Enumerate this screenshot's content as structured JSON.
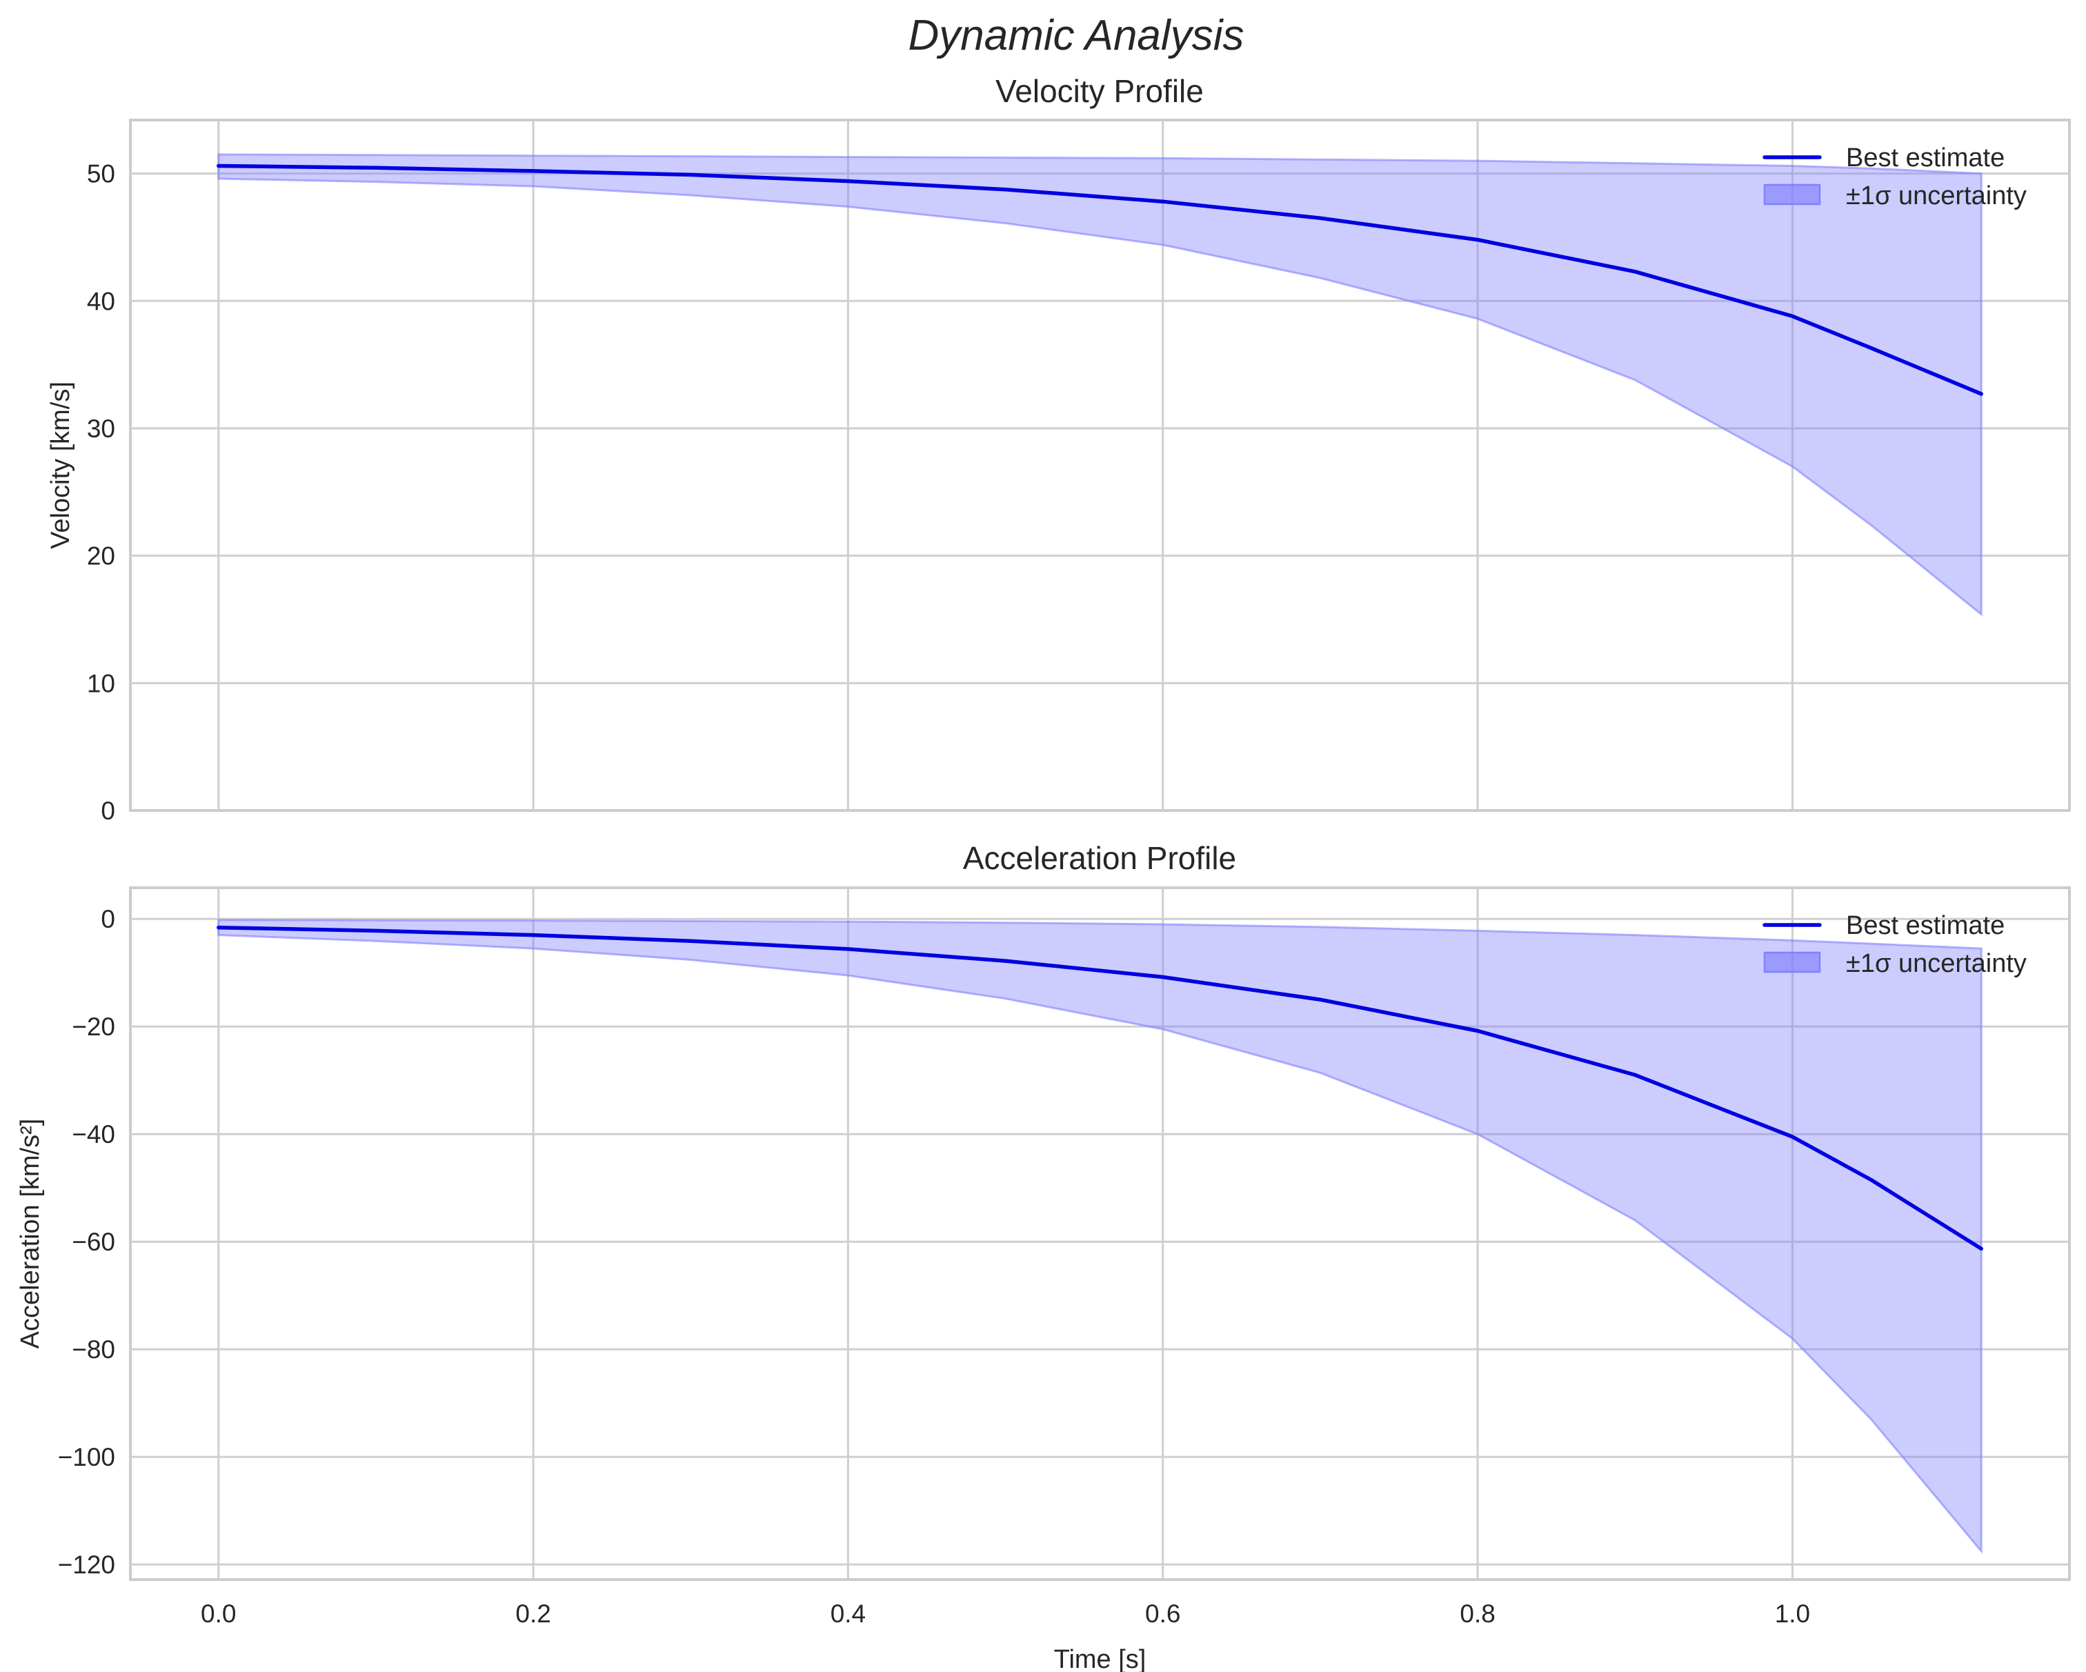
{
  "figure": {
    "suptitle": "Dynamic Analysis"
  },
  "colors": {
    "line": "#0000e0",
    "band_fill": "#8080ff",
    "band_alpha": 0.4,
    "grid": "#cfcfcf",
    "spine": "#cccccc",
    "text": "#262626"
  },
  "chart_data": [
    {
      "type": "line",
      "title": "Velocity Profile",
      "xlabel": "",
      "ylabel": "Velocity [km/s]",
      "xlim": [
        -0.056,
        1.176
      ],
      "ylim": [
        0,
        54.2
      ],
      "xticks": [
        0.0,
        0.2,
        0.4,
        0.6,
        0.8,
        1.0
      ],
      "xtick_labels": [
        "0.0",
        "0.2",
        "0.4",
        "0.6",
        "0.8",
        "1.0"
      ],
      "show_xtick_labels": false,
      "yticks": [
        0,
        10,
        20,
        30,
        40,
        50
      ],
      "ytick_labels": [
        "0",
        "10",
        "20",
        "30",
        "40",
        "50"
      ],
      "grid": true,
      "legend": {
        "position": "upper right",
        "entries": [
          "Best estimate",
          "±1σ uncertainty"
        ]
      },
      "x": [
        0.0,
        0.1,
        0.2,
        0.3,
        0.4,
        0.5,
        0.6,
        0.7,
        0.8,
        0.9,
        1.0,
        1.05,
        1.12
      ],
      "series": [
        {
          "name": "Best estimate",
          "values": [
            50.6,
            50.45,
            50.2,
            49.9,
            49.4,
            48.75,
            47.8,
            46.5,
            44.8,
            42.3,
            38.8,
            36.3,
            32.7
          ]
        },
        {
          "name": "±1σ upper",
          "values": [
            51.5,
            51.45,
            51.4,
            51.35,
            51.3,
            51.25,
            51.2,
            51.1,
            51.0,
            50.8,
            50.6,
            50.4,
            50.0
          ]
        },
        {
          "name": "±1σ lower",
          "values": [
            49.6,
            49.35,
            49.0,
            48.3,
            47.4,
            46.1,
            44.4,
            41.8,
            38.6,
            33.8,
            27.0,
            22.4,
            15.4
          ]
        }
      ]
    },
    {
      "type": "line",
      "title": "Acceleration Profile",
      "xlabel": "Time [s]",
      "ylabel": "Acceleration [km/s²]",
      "xlim": [
        -0.056,
        1.176
      ],
      "ylim": [
        -122.8,
        5.8
      ],
      "xticks": [
        0.0,
        0.2,
        0.4,
        0.6,
        0.8,
        1.0
      ],
      "xtick_labels": [
        "0.0",
        "0.2",
        "0.4",
        "0.6",
        "0.8",
        "1.0"
      ],
      "show_xtick_labels": true,
      "yticks": [
        0,
        -20,
        -40,
        -60,
        -80,
        -100,
        -120
      ],
      "ytick_labels": [
        "0",
        "−20",
        "−40",
        "−60",
        "−80",
        "−100",
        "−120"
      ],
      "grid": true,
      "legend": {
        "position": "upper right",
        "entries": [
          "Best estimate",
          "±1σ uncertainty"
        ]
      },
      "x": [
        0.0,
        0.1,
        0.2,
        0.3,
        0.4,
        0.5,
        0.6,
        0.7,
        0.8,
        0.9,
        1.0,
        1.05,
        1.12
      ],
      "series": [
        {
          "name": "Best estimate",
          "values": [
            -1.6,
            -2.2,
            -3.0,
            -4.1,
            -5.6,
            -7.8,
            -10.8,
            -15.0,
            -20.8,
            -29.0,
            -40.5,
            -48.5,
            -61.3
          ]
        },
        {
          "name": "±1σ upper",
          "values": [
            -0.2,
            -0.25,
            -0.3,
            -0.4,
            -0.5,
            -0.7,
            -1.0,
            -1.5,
            -2.2,
            -3.0,
            -4.0,
            -4.6,
            -5.5
          ]
        },
        {
          "name": "±1σ lower",
          "values": [
            -3.0,
            -4.1,
            -5.5,
            -7.6,
            -10.5,
            -14.8,
            -20.5,
            -28.6,
            -40.0,
            -56.0,
            -78.0,
            -93.0,
            -117.5
          ]
        }
      ]
    }
  ]
}
